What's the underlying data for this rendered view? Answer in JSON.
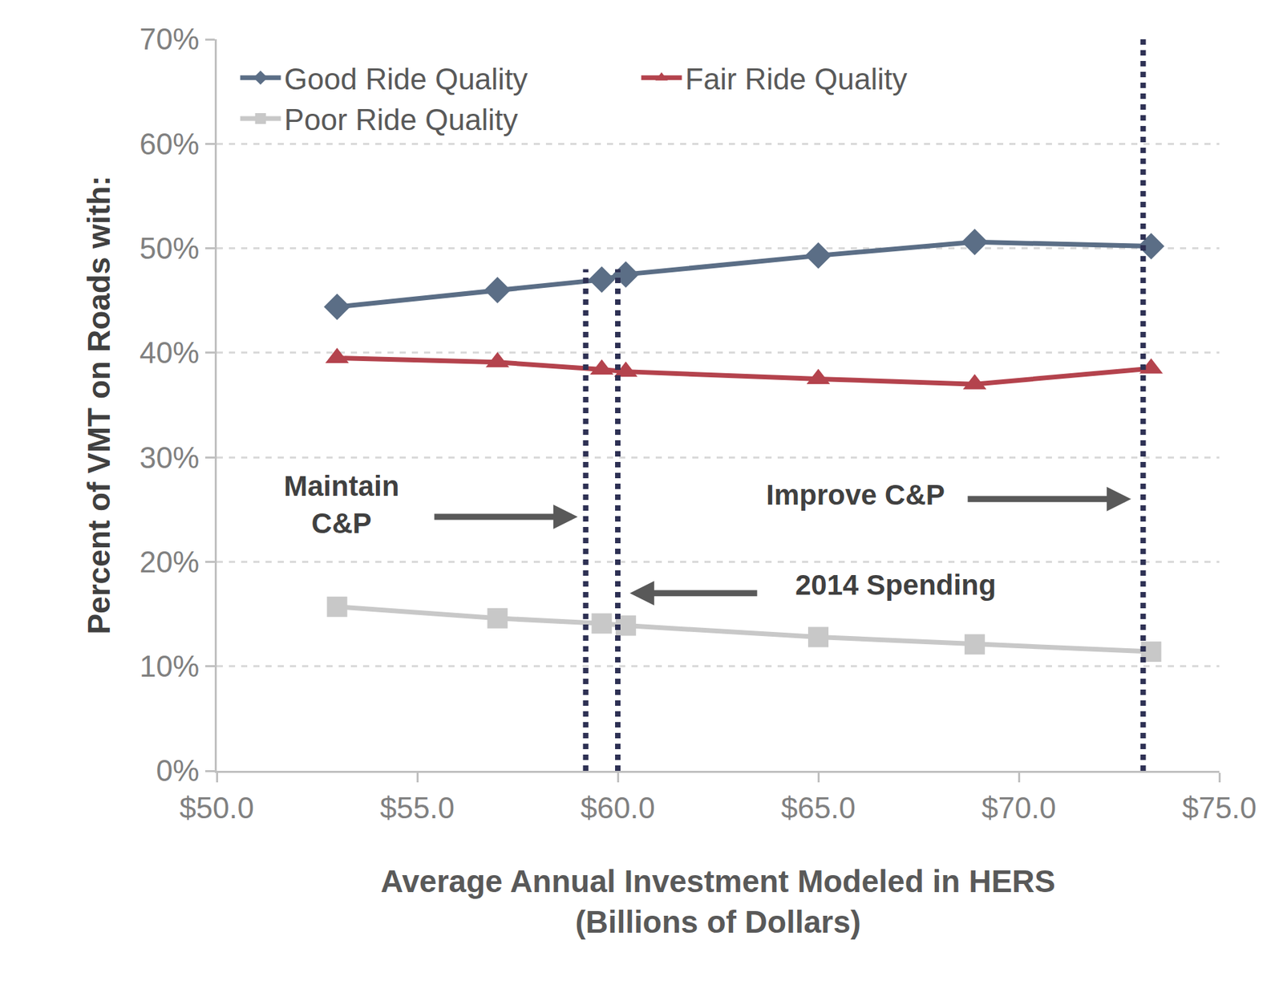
{
  "chart_data": {
    "type": "line",
    "xlabel": "Average Annual Investment Modeled in HERS\n(Billions of Dollars)",
    "ylabel": "Percent of VMT on Roads with:",
    "x": [
      53.0,
      57.0,
      59.6,
      60.2,
      65.0,
      68.9,
      73.3
    ],
    "series": [
      {
        "name": "Good Ride Quality",
        "color": "#5b6e86",
        "marker": "diamond",
        "line_style": "solid",
        "values": [
          44.4,
          46.0,
          47.0,
          47.5,
          49.3,
          50.6,
          50.2
        ]
      },
      {
        "name": "Fair Ride Quality",
        "color": "#b4434d",
        "marker": "triangle-up",
        "line_style": "solid",
        "values": [
          39.5,
          39.1,
          38.4,
          38.2,
          37.5,
          37.0,
          38.5
        ]
      },
      {
        "name": "Poor Ride Quality",
        "color": "#c8c8c8",
        "marker": "square",
        "line_style": "solid",
        "values": [
          15.7,
          14.6,
          14.1,
          13.9,
          12.8,
          12.1,
          11.4
        ]
      }
    ],
    "xlim": [
      50,
      75
    ],
    "xticks": [
      {
        "value": 50,
        "label": "$50.0"
      },
      {
        "value": 55,
        "label": "$55.0"
      },
      {
        "value": 60,
        "label": "$60.0"
      },
      {
        "value": 65,
        "label": "$65.0"
      },
      {
        "value": 70,
        "label": "$70.0"
      },
      {
        "value": 75,
        "label": "$75.0"
      }
    ],
    "ylim": [
      0,
      70
    ],
    "yticks": [
      {
        "value": 0,
        "label": "0%"
      },
      {
        "value": 10,
        "label": "10%"
      },
      {
        "value": 20,
        "label": "20%"
      },
      {
        "value": 30,
        "label": "30%"
      },
      {
        "value": 40,
        "label": "40%"
      },
      {
        "value": 50,
        "label": "50%"
      },
      {
        "value": 60,
        "label": "60%"
      },
      {
        "value": 70,
        "label": "70%"
      }
    ],
    "grid": true,
    "legend": "upper left",
    "reference_lines": [
      {
        "label": "Maintain\nC&P",
        "x": 59.2,
        "ymax": 48,
        "color": "#2e3154",
        "line_style": "dotted"
      },
      {
        "label": "2014 Spending",
        "x": 60.0,
        "ymax": 48,
        "color": "#2e3154",
        "line_style": "dotted"
      },
      {
        "label": "Improve C&P",
        "x": 73.1,
        "ymax": 70,
        "color": "#2e3154",
        "line_style": "dotted"
      }
    ]
  }
}
